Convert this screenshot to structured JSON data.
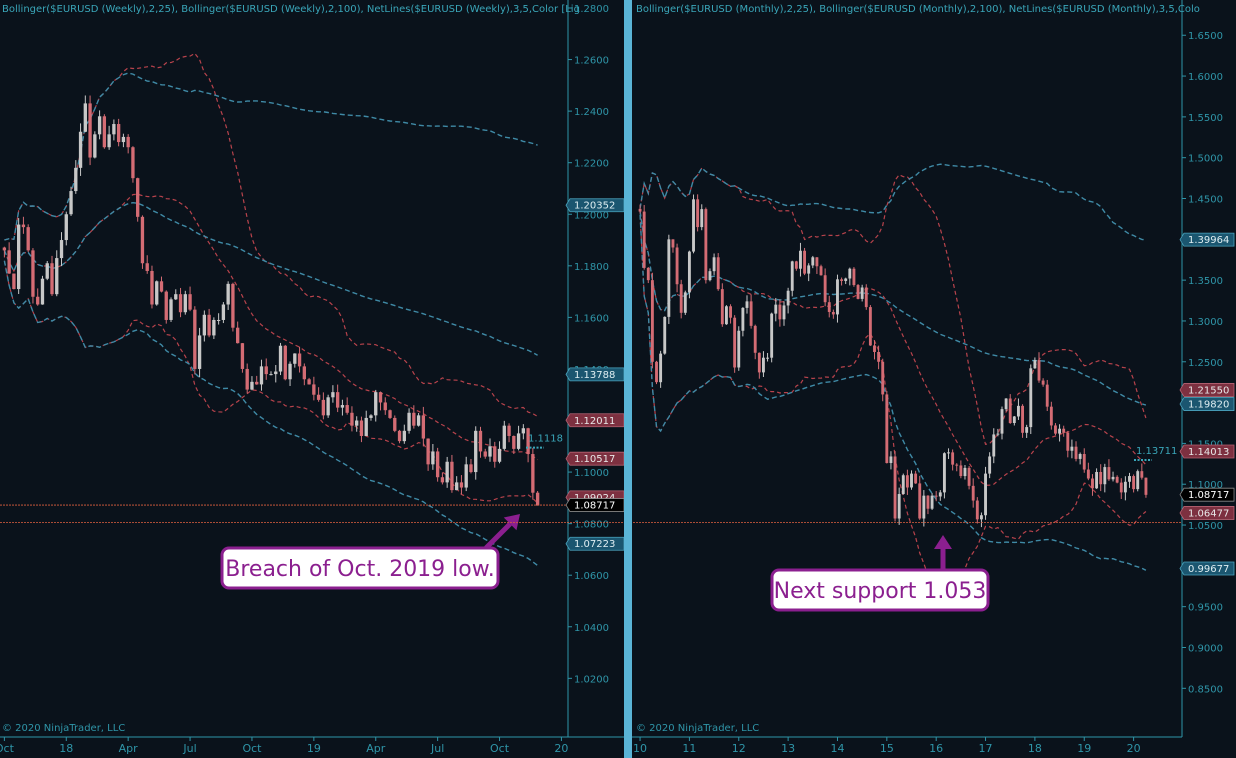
{
  "colors": {
    "background": "#0a121b",
    "axis_text": "#2f95a8",
    "header_text": "#3aa6b9",
    "candle_up": "#c8c8c8",
    "candle_down": "#d46c74",
    "band_red": "#b8434c",
    "band_blue": "#3f8aa6",
    "support_line": "#e0603f",
    "callout_border": "#8b1f8f",
    "callout_text": "#8b1f8f",
    "divider": "#5ab4d6"
  },
  "chart_data": [
    {
      "type": "candlestick",
      "title": "Bollinger($EURUSD (Weekly),2,25), Bollinger($EURUSD (Weekly),2,100), NetLines($EURUSD (Weekly),3,5,Color [Lig",
      "copyright": "© 2020 NinjaTrader, LLC",
      "x_tick_labels": [
        "Oct",
        "18",
        "Apr",
        "Jul",
        "Oct",
        "19",
        "Apr",
        "Jul",
        "Oct",
        "20"
      ],
      "x_tick_positions": [
        0.5,
        13.5,
        26.5,
        39.5,
        52.5,
        65.5,
        78.5,
        91.5,
        104.5,
        117.5
      ],
      "ylim": [
        1.005,
        1.28
      ],
      "y_tick_labels": [
        "1.0200",
        "1.0400",
        "1.0600",
        "1.0800",
        "1.1000",
        "1.1200",
        "1.1400",
        "1.1600",
        "1.1800",
        "1.2000",
        "1.2200",
        "1.2400",
        "1.2600",
        "1.2800"
      ],
      "y_ticks": [
        1.02,
        1.04,
        1.06,
        1.08,
        1.1,
        1.12,
        1.14,
        1.16,
        1.18,
        1.2,
        1.22,
        1.24,
        1.26,
        1.28
      ],
      "price_tags": [
        {
          "label": "1.20352",
          "value": 1.2035,
          "color": "blue"
        },
        {
          "label": "1.13788",
          "value": 1.1379,
          "color": "blue"
        },
        {
          "label": "1.12011",
          "value": 1.1201,
          "color": "red"
        },
        {
          "label": "1.10517",
          "value": 1.1052,
          "color": "red"
        },
        {
          "label": "1.09024",
          "value": 1.0902,
          "color": "red"
        },
        {
          "label": "1.08717",
          "value": 1.0872,
          "color": "last"
        },
        {
          "label": "1.07223",
          "value": 1.0722,
          "color": "blue"
        }
      ],
      "netline_label": "1.1118",
      "netline_value": 1.1118,
      "support_level": 1.0872,
      "annotation": "Breach of Oct. 2019 low.",
      "closes": [
        1.186,
        1.177,
        1.171,
        1.196,
        1.195,
        1.186,
        1.168,
        1.165,
        1.175,
        1.181,
        1.169,
        1.183,
        1.19,
        1.2,
        1.209,
        1.218,
        1.232,
        1.243,
        1.222,
        1.231,
        1.238,
        1.226,
        1.231,
        1.235,
        1.228,
        1.23,
        1.226,
        1.214,
        1.199,
        1.181,
        1.178,
        1.165,
        1.174,
        1.17,
        1.159,
        1.167,
        1.169,
        1.162,
        1.169,
        1.163,
        1.14,
        1.153,
        1.161,
        1.153,
        1.159,
        1.159,
        1.165,
        1.173,
        1.156,
        1.15,
        1.14,
        1.132,
        1.135,
        1.134,
        1.141,
        1.138,
        1.138,
        1.139,
        1.149,
        1.136,
        1.142,
        1.146,
        1.141,
        1.136,
        1.134,
        1.13,
        1.128,
        1.122,
        1.129,
        1.131,
        1.125,
        1.126,
        1.123,
        1.118,
        1.12,
        1.114,
        1.121,
        1.122,
        1.131,
        1.127,
        1.124,
        1.121,
        1.116,
        1.112,
        1.116,
        1.123,
        1.118,
        1.122,
        1.113,
        1.103,
        1.108,
        1.098,
        1.096,
        1.104,
        1.093,
        1.096,
        1.094,
        1.103,
        1.1,
        1.116,
        1.108,
        1.106,
        1.11,
        1.104,
        1.109,
        1.118,
        1.114,
        1.109,
        1.115,
        1.117,
        1.107,
        1.092,
        1.087
      ]
    },
    {
      "type": "candlestick",
      "title": "Bollinger($EURUSD (Monthly),2,25), Bollinger($EURUSD (Monthly),2,100), NetLines($EURUSD (Monthly),3,5,Colo",
      "copyright": "© 2020 NinjaTrader, LLC",
      "x_tick_labels": [
        "10",
        "11",
        "12",
        "13",
        "14",
        "15",
        "16",
        "17",
        "18",
        "19",
        "20"
      ],
      "x_tick_positions": [
        0.5,
        12.5,
        24.5,
        36.5,
        48.5,
        60.5,
        72.5,
        84.5,
        96.5,
        108.5,
        120.5
      ],
      "ylim": [
        0.832,
        1.665
      ],
      "y_tick_labels": [
        "0.8500",
        "0.9000",
        "0.9500",
        "1.0000",
        "1.0500",
        "1.1000",
        "1.1500",
        "1.2000",
        "1.2500",
        "1.3000",
        "1.3500",
        "1.4000",
        "1.4500",
        "1.5000",
        "1.5500",
        "1.6000",
        "1.6500"
      ],
      "y_ticks": [
        0.85,
        0.9,
        0.95,
        1.0,
        1.05,
        1.1,
        1.15,
        1.2,
        1.25,
        1.3,
        1.35,
        1.4,
        1.45,
        1.5,
        1.55,
        1.6,
        1.65
      ],
      "price_tags": [
        {
          "label": "1.39964",
          "value": 1.3996,
          "color": "blue"
        },
        {
          "label": "1.21550",
          "value": 1.2155,
          "color": "red"
        },
        {
          "label": "1.19820",
          "value": 1.1982,
          "color": "blue"
        },
        {
          "label": "1.14013",
          "value": 1.1401,
          "color": "red"
        },
        {
          "label": "1.08717",
          "value": 1.0872,
          "color": "last"
        },
        {
          "label": "1.06477",
          "value": 1.0648,
          "color": "red"
        },
        {
          "label": "0.99677",
          "value": 0.9968,
          "color": "blue"
        }
      ],
      "netline_label": "1.13711",
      "netline_value": 1.1371,
      "support_level": 1.053,
      "annotation": "Next support 1.053",
      "closes": [
        1.434,
        1.365,
        1.35,
        1.25,
        1.225,
        1.26,
        1.305,
        1.4,
        1.39,
        1.345,
        1.31,
        1.335,
        1.385,
        1.449,
        1.415,
        1.437,
        1.35,
        1.361,
        1.378,
        1.339,
        1.296,
        1.318,
        1.304,
        1.243,
        1.288,
        1.316,
        1.324,
        1.294,
        1.261,
        1.237,
        1.255,
        1.255,
        1.309,
        1.32,
        1.302,
        1.319,
        1.337,
        1.373,
        1.364,
        1.386,
        1.358,
        1.368,
        1.378,
        1.367,
        1.356,
        1.323,
        1.311,
        1.308,
        1.351,
        1.349,
        1.352,
        1.364,
        1.344,
        1.327,
        1.341,
        1.317,
        1.27,
        1.262,
        1.25,
        1.21,
        1.126,
        1.134,
        1.058,
        1.088,
        1.111,
        1.096,
        1.113,
        1.101,
        1.058,
        1.086,
        1.07,
        1.086,
        1.085,
        1.09,
        1.138,
        1.139,
        1.124,
        1.123,
        1.11,
        1.12,
        1.098,
        1.08,
        1.057,
        1.062,
        1.113,
        1.134,
        1.161,
        1.162,
        1.192,
        1.205,
        1.175,
        1.183,
        1.196,
        1.163,
        1.17,
        1.242,
        1.252,
        1.227,
        1.222,
        1.195,
        1.172,
        1.162,
        1.168,
        1.163,
        1.141,
        1.146,
        1.131,
        1.137,
        1.118,
        1.107,
        1.095,
        1.115,
        1.1,
        1.121,
        1.106,
        1.109,
        1.102,
        1.09,
        1.103,
        1.11,
        1.094,
        1.116,
        1.108,
        1.087
      ]
    }
  ]
}
